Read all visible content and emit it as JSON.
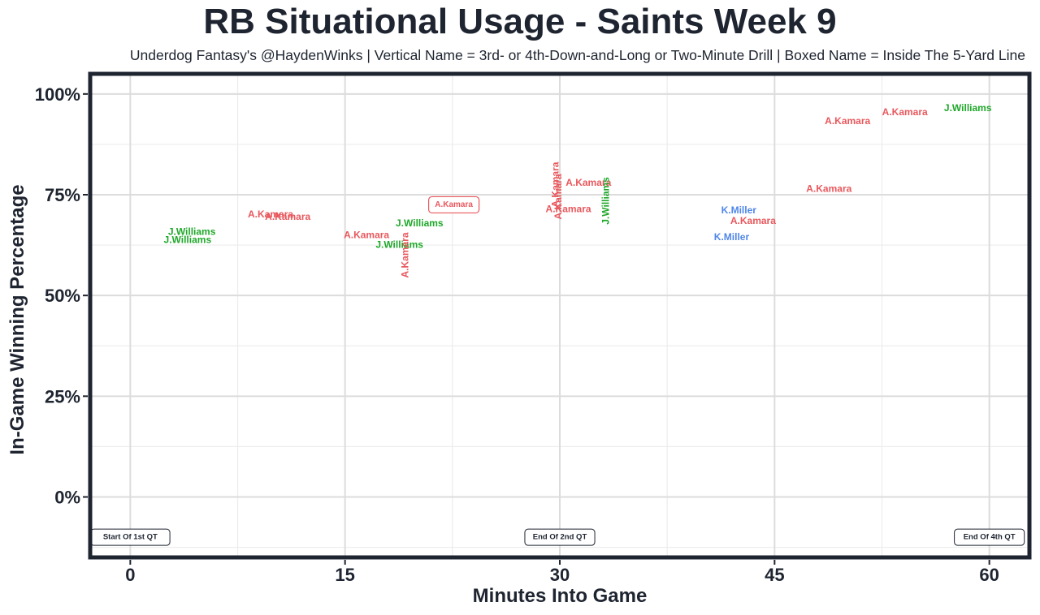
{
  "chart_data": {
    "type": "scatter",
    "title": "RB Situational Usage - Saints Week 9",
    "subtitle": "Underdog Fantasy's @HaydenWinks | Vertical Name = 3rd- or 4th-Down-and-Long or Two-Minute Drill | Boxed Name = Inside The 5-Yard Line",
    "xlabel": "Minutes Into Game",
    "ylabel": "In-Game Winning Percentage",
    "xlim": [
      -2.8,
      62.8
    ],
    "ylim": [
      -15,
      105
    ],
    "x_ticks": [
      0,
      15,
      30,
      45,
      60
    ],
    "x_tick_labels": [
      "0",
      "15",
      "30",
      "45",
      "60"
    ],
    "y_ticks": [
      0,
      25,
      50,
      75,
      100
    ],
    "y_tick_labels": [
      "0%",
      "25%",
      "50%",
      "75%",
      "100%"
    ],
    "grid": true,
    "colors": {
      "A.Kamara": "#e8585d",
      "J.Williams": "#1fa82a",
      "K.Miller": "#4f86e8"
    },
    "points": [
      {
        "player": "J.Williams",
        "x": 4.3,
        "y": 65.8,
        "style": "normal"
      },
      {
        "player": "J.Williams",
        "x": 4.0,
        "y": 63.8,
        "style": "normal"
      },
      {
        "player": "A.Kamara",
        "x": 9.8,
        "y": 70.2,
        "style": "normal"
      },
      {
        "player": "A.Kamara",
        "x": 11.0,
        "y": 69.6,
        "style": "normal"
      },
      {
        "player": "A.Kamara",
        "x": 16.5,
        "y": 65.0,
        "style": "normal"
      },
      {
        "player": "J.Williams",
        "x": 18.8,
        "y": 62.6,
        "style": "normal"
      },
      {
        "player": "J.Williams",
        "x": 20.2,
        "y": 68.0,
        "style": "normal"
      },
      {
        "player": "A.Kamara",
        "x": 19.2,
        "y": 60.0,
        "style": "vertical"
      },
      {
        "player": "A.Kamara",
        "x": 22.6,
        "y": 72.5,
        "style": "boxed"
      },
      {
        "player": "A.Kamara",
        "x": 29.7,
        "y": 77.5,
        "style": "vertical"
      },
      {
        "player": "A.Kamara",
        "x": 29.9,
        "y": 74.5,
        "style": "vertical"
      },
      {
        "player": "A.Kamara",
        "x": 30.6,
        "y": 71.5,
        "style": "normal"
      },
      {
        "player": "A.Kamara",
        "x": 32.0,
        "y": 78.0,
        "style": "normal"
      },
      {
        "player": "J.Williams",
        "x": 33.2,
        "y": 73.5,
        "style": "vertical"
      },
      {
        "player": "K.Miller",
        "x": 42.5,
        "y": 71.2,
        "style": "normal"
      },
      {
        "player": "K.Miller",
        "x": 42.0,
        "y": 64.5,
        "style": "normal"
      },
      {
        "player": "A.Kamara",
        "x": 43.5,
        "y": 68.6,
        "style": "normal"
      },
      {
        "player": "A.Kamara",
        "x": 48.8,
        "y": 76.5,
        "style": "normal"
      },
      {
        "player": "A.Kamara",
        "x": 50.1,
        "y": 93.3,
        "style": "normal"
      },
      {
        "player": "A.Kamara",
        "x": 54.1,
        "y": 95.5,
        "style": "normal"
      },
      {
        "player": "J.Williams",
        "x": 58.5,
        "y": 96.5,
        "style": "normal"
      }
    ],
    "annotations": [
      {
        "label": "Start Of 1st QT",
        "x": 0,
        "y": -10
      },
      {
        "label": "End Of 2nd QT",
        "x": 30,
        "y": -10
      },
      {
        "label": "End Of 4th QT",
        "x": 60,
        "y": -10
      }
    ]
  }
}
